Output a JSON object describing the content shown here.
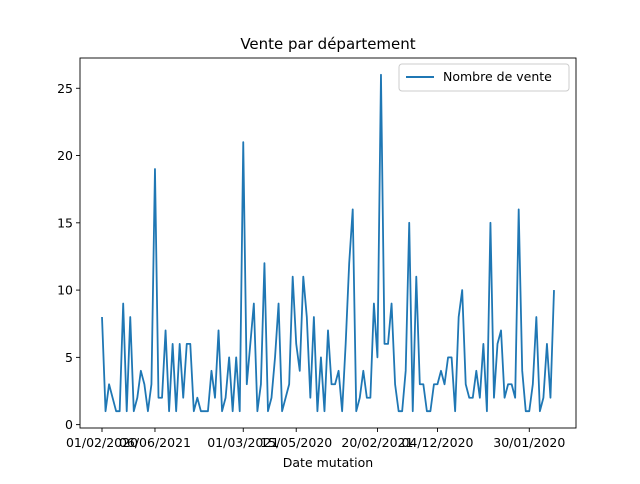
{
  "chart_data": {
    "type": "line",
    "title": "Vente par département",
    "xlabel": "Date mutation",
    "ylabel": "",
    "ylim": [
      -0.25,
      27.25
    ],
    "yticks": [
      0,
      5,
      10,
      15,
      20,
      25
    ],
    "xtick_labels": [
      "01/02/2020",
      "06/06/2021",
      "01/03/2021",
      "15/05/2020",
      "20/02/2021",
      "04/12/2020",
      "30/01/2020"
    ],
    "xtick_index": [
      0,
      15,
      40,
      55,
      78,
      95,
      121
    ],
    "x_count": 129,
    "grid": false,
    "legend_position": "upper-right",
    "series": [
      {
        "name": "Nombre de vente",
        "color": "#1f77b4",
        "values": [
          8,
          1,
          3,
          2,
          1,
          1,
          9,
          1,
          8,
          1,
          2,
          4,
          3,
          1,
          3,
          19,
          2,
          2,
          7,
          1,
          6,
          1,
          6,
          2,
          6,
          6,
          1,
          2,
          1,
          1,
          1,
          4,
          2,
          7,
          1,
          2,
          5,
          1,
          5,
          1,
          21,
          3,
          6,
          9,
          1,
          3,
          12,
          1,
          2,
          5,
          9,
          1,
          2,
          3,
          11,
          6,
          4,
          11,
          8,
          2,
          8,
          1,
          5,
          1,
          7,
          3,
          3,
          4,
          1,
          6,
          12,
          16,
          1,
          2,
          4,
          2,
          2,
          9,
          5,
          26,
          6,
          6,
          9,
          3,
          1,
          1,
          4,
          15,
          1,
          11,
          3,
          3,
          1,
          1,
          3,
          3,
          4,
          3,
          5,
          5,
          1,
          8,
          10,
          3,
          2,
          2,
          4,
          2,
          6,
          1,
          15,
          2,
          6,
          7,
          2,
          3,
          3,
          2,
          16,
          4,
          1,
          1,
          3,
          8,
          1,
          2,
          6,
          2,
          10
        ]
      }
    ]
  }
}
